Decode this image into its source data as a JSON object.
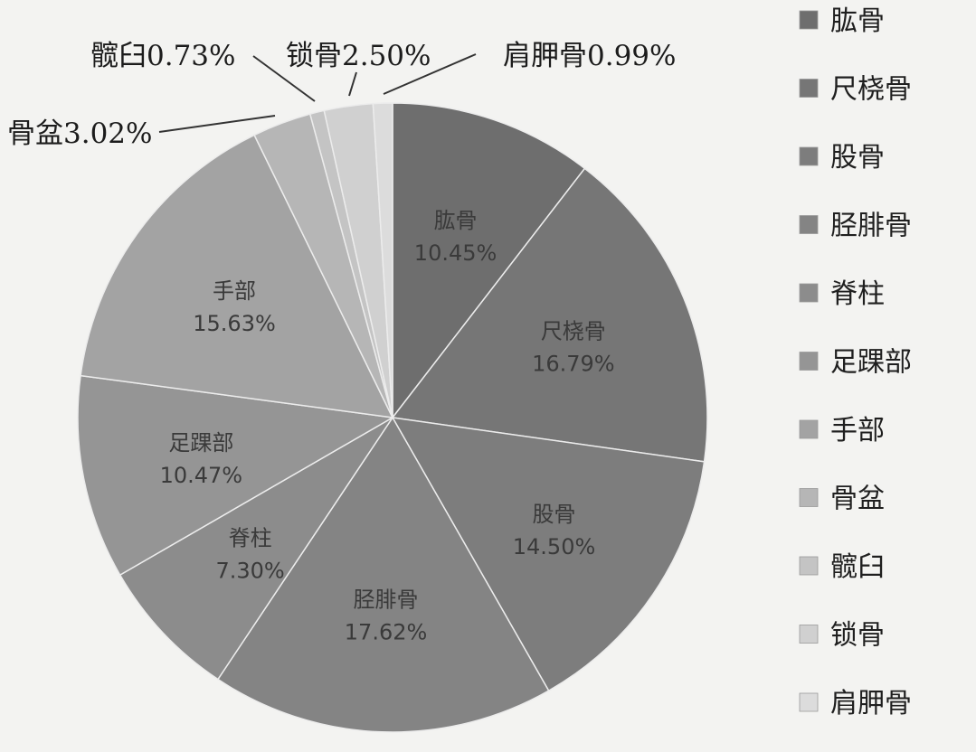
{
  "chart_data": {
    "type": "pie",
    "slices": [
      {
        "name": "肱骨",
        "label_name": "肱骨",
        "label_value": "10.45%",
        "value": 10.45,
        "color": "#6e6e6e",
        "label_pos": "inside"
      },
      {
        "name": "尺桡骨",
        "label_name": "尺桡骨",
        "label_value": "16.79%",
        "value": 16.79,
        "color": "#767676",
        "label_pos": "inside"
      },
      {
        "name": "股骨",
        "label_name": "股骨",
        "label_value": "14.50%",
        "value": 14.5,
        "color": "#7d7d7d",
        "label_pos": "inside"
      },
      {
        "name": "胫腓骨",
        "label_name": "胫腓骨",
        "label_value": "17.62%",
        "value": 17.62,
        "color": "#848484",
        "label_pos": "inside"
      },
      {
        "name": "脊柱",
        "label_name": "脊柱",
        "label_value": "7.30%",
        "value": 7.3,
        "color": "#8c8c8c",
        "label_pos": "inside"
      },
      {
        "name": "足踝部",
        "label_name": "足踝部",
        "label_value": "10.47%",
        "value": 10.47,
        "color": "#959595",
        "label_pos": "inside"
      },
      {
        "name": "手部",
        "label_name": "手部",
        "label_value": "15.63%",
        "value": 15.63,
        "color": "#a3a3a3",
        "label_pos": "inside"
      },
      {
        "name": "骨盆",
        "label_text": "骨盆3.02%",
        "value": 3.02,
        "color": "#b6b6b6",
        "label_pos": "outside"
      },
      {
        "name": "髋臼",
        "label_text": "髋臼0.73%",
        "value": 0.73,
        "color": "#c4c4c4",
        "label_pos": "outside"
      },
      {
        "name": "锁骨",
        "label_text": "锁骨2.50%",
        "value": 2.5,
        "color": "#d0d0d0",
        "label_pos": "outside"
      },
      {
        "name": "肩胛骨",
        "label_text": "肩胛骨0.99%",
        "value": 0.99,
        "color": "#dcdcdc",
        "label_pos": "outside"
      }
    ],
    "legend": {
      "position": "right"
    }
  }
}
